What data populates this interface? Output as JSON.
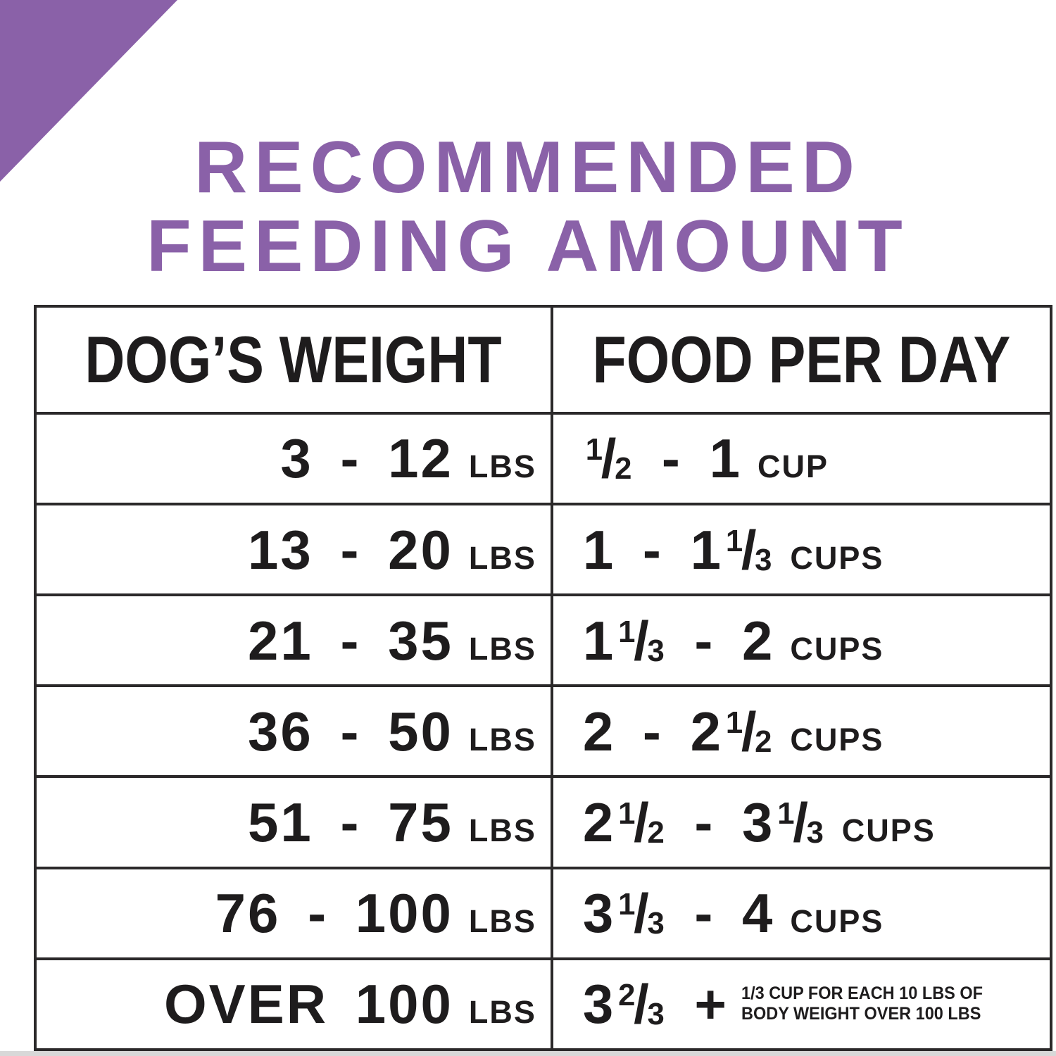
{
  "colors": {
    "accent_purple": "#8a61a8",
    "text_black": "#1e1c1d",
    "table_border": "#2b292a",
    "page_edge_gray": "#d8d8d8"
  },
  "title": {
    "line1": "RECOMMENDED",
    "line2": "FEEDING AMOUNT"
  },
  "table": {
    "headers": [
      "DOG’S WEIGHT",
      "FOOD PER DAY"
    ],
    "rows": [
      {
        "weight": "3 - 12",
        "weight_unit": "LBS",
        "food_tokens": [
          {
            "frac": [
              "1",
              "2"
            ]
          },
          {
            "text": " - 1"
          }
        ],
        "food_unit": "CUP",
        "note_lines": []
      },
      {
        "weight": "13 - 20",
        "weight_unit": "LBS",
        "food_tokens": [
          {
            "text": "1 - 1"
          },
          {
            "frac": [
              "1",
              "3"
            ]
          }
        ],
        "food_unit": "CUPS",
        "note_lines": []
      },
      {
        "weight": "21 - 35",
        "weight_unit": "LBS",
        "food_tokens": [
          {
            "text": "1"
          },
          {
            "frac": [
              "1",
              "3"
            ]
          },
          {
            "text": " - 2"
          }
        ],
        "food_unit": "CUPS",
        "note_lines": []
      },
      {
        "weight": "36 - 50",
        "weight_unit": "LBS",
        "food_tokens": [
          {
            "text": "2 - 2"
          },
          {
            "frac": [
              "1",
              "2"
            ]
          }
        ],
        "food_unit": "CUPS",
        "note_lines": []
      },
      {
        "weight": "51 - 75",
        "weight_unit": "LBS",
        "food_tokens": [
          {
            "text": "2"
          },
          {
            "frac": [
              "1",
              "2"
            ]
          },
          {
            "text": " - 3"
          },
          {
            "frac": [
              "1",
              "3"
            ]
          }
        ],
        "food_unit": "CUPS",
        "note_lines": []
      },
      {
        "weight": "76 - 100",
        "weight_unit": "LBS",
        "food_tokens": [
          {
            "text": "3"
          },
          {
            "frac": [
              "1",
              "3"
            ]
          },
          {
            "text": " - 4"
          }
        ],
        "food_unit": "CUPS",
        "note_lines": []
      },
      {
        "weight": "OVER 100",
        "weight_unit": "LBS",
        "food_tokens": [
          {
            "text": "3"
          },
          {
            "frac": [
              "2",
              "3"
            ]
          },
          {
            "text": " +"
          }
        ],
        "food_unit": "",
        "note_lines": [
          "1/3 CUP FOR EACH 10 LBS OF",
          "BODY WEIGHT OVER 100 LBS"
        ]
      }
    ]
  },
  "chart_data": {
    "type": "table",
    "title": "RECOMMENDED FEEDING AMOUNT",
    "columns": [
      "DOG’S WEIGHT",
      "FOOD PER DAY"
    ],
    "rows": [
      [
        "3 - 12 LBS",
        "1/2 - 1 CUP"
      ],
      [
        "13 - 20 LBS",
        "1 - 1 1/3 CUPS"
      ],
      [
        "21 - 35 LBS",
        "1 1/3 - 2 CUPS"
      ],
      [
        "36 - 50 LBS",
        "2 - 2 1/2 CUPS"
      ],
      [
        "51 - 75 LBS",
        "2 1/2 - 3 1/3 CUPS"
      ],
      [
        "76 - 100 LBS",
        "3 1/3 - 4 CUPS"
      ],
      [
        "OVER 100 LBS",
        "3 2/3 + 1/3 CUP FOR EACH 10 LBS OF BODY WEIGHT OVER 100 LBS"
      ]
    ]
  }
}
